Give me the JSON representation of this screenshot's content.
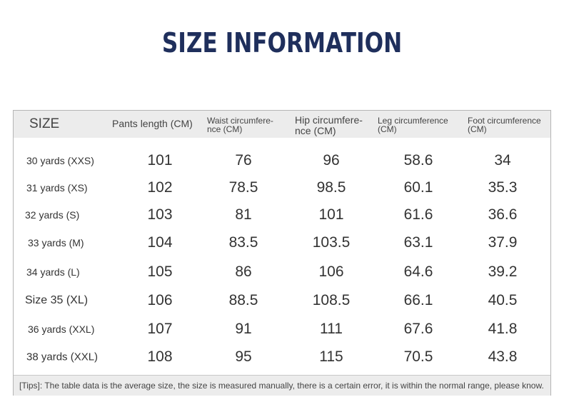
{
  "header": {
    "title": "SIZE INFORMATION"
  },
  "table": {
    "headers": [
      [
        "SIZE"
      ],
      [
        "Pants length (CM)"
      ],
      [
        "Waist circumfere-",
        "nce (CM)"
      ],
      [
        "Hip circumfere-",
        "nce (CM)"
      ],
      [
        "Leg circumference",
        "(CM)"
      ],
      [
        "Foot circumference",
        "(CM)"
      ]
    ],
    "rows": [
      [
        "30 yards (XXS)",
        101,
        76,
        96,
        58.6,
        34
      ],
      [
        "31 yards (XS)",
        102,
        78.5,
        98.5,
        60.1,
        35.3
      ],
      [
        "32 yards (S)",
        103,
        81,
        101,
        61.6,
        36.6
      ],
      [
        "33 yards (M)",
        104,
        83.5,
        103.5,
        63.1,
        37.9
      ],
      [
        "34 yards (L)",
        105,
        86,
        106,
        64.6,
        39.2
      ],
      [
        "Size 35 (XL)",
        106,
        88.5,
        108.5,
        66.1,
        40.5
      ],
      [
        "36 yards (XXL)",
        107,
        91,
        111,
        67.6,
        41.8
      ],
      [
        "38 yards (XXL)",
        108,
        95,
        115,
        70.5,
        43.8
      ]
    ],
    "tips": "[Tips]: The table data is the average size, the size is measured manually, there is a certain error, it is within the normal range, please know."
  }
}
